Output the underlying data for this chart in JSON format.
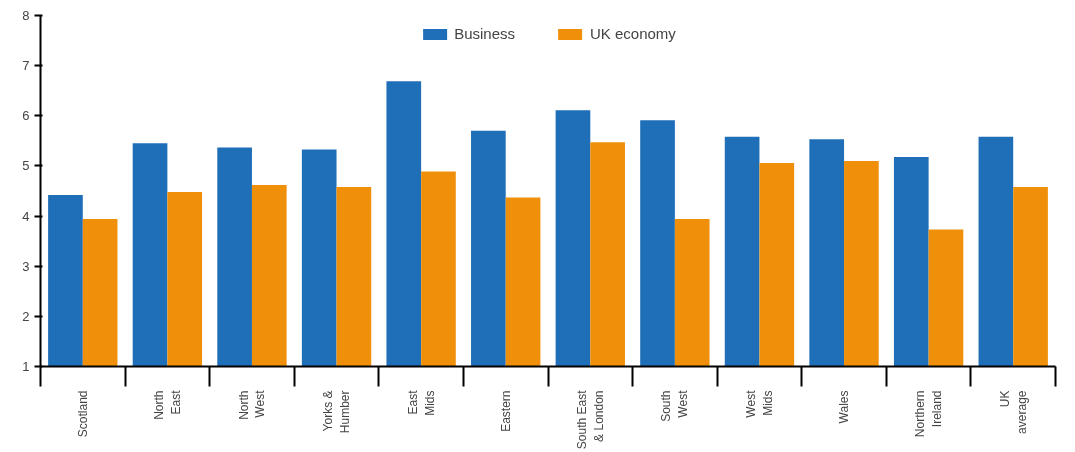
{
  "chart_data": {
    "type": "bar",
    "categories": [
      "Scotland",
      "North\nEast",
      "North\nWest",
      "Yorks &\nHumber",
      "East\nMids",
      "Eastern",
      "South East\n& London",
      "South\nWest",
      "West\nMids",
      "Wales",
      "Northern\nIreland",
      "UK\naverage"
    ],
    "series": [
      {
        "name": "Business",
        "color": "#1f6fb8",
        "values": [
          4.42,
          5.45,
          5.37,
          5.33,
          6.69,
          5.7,
          6.11,
          5.91,
          5.58,
          5.53,
          5.18,
          5.58
        ]
      },
      {
        "name": "UK economy",
        "color": "#f0900a",
        "values": [
          3.94,
          4.48,
          4.62,
          4.58,
          4.89,
          4.37,
          5.47,
          3.94,
          5.06,
          5.1,
          3.73,
          4.58
        ]
      }
    ],
    "ylim": [
      1,
      8
    ],
    "yticks": [
      1,
      2,
      3,
      4,
      5,
      6,
      7,
      8
    ],
    "grid": false,
    "legend": "top"
  }
}
